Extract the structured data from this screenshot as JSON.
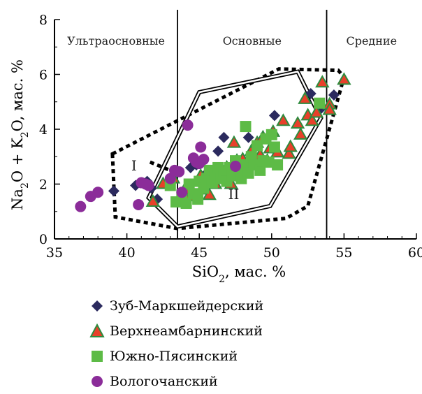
{
  "chart_data": {
    "type": "scatter",
    "title": "",
    "xlabel": "SiO2, мас. %",
    "ylabel": "Na2O + K2O, мас. %",
    "xlim": [
      35,
      60
    ],
    "ylim": [
      0,
      8
    ],
    "x_ticks": [
      "35",
      "40",
      "45",
      "50",
      "55",
      "60"
    ],
    "y_ticks": [
      "0",
      "2",
      "4",
      "6",
      "8"
    ],
    "boundaries_x": [
      43.5,
      53.8
    ],
    "field_labels": [
      "Ультраосновные",
      "Основные",
      "Средние"
    ],
    "region_labels": [
      "I",
      "II"
    ],
    "series": [
      {
        "name": "Зуб-Маркшейдерский",
        "marker": "diamond",
        "color": "#2b2a5e",
        "points": [
          [
            39.1,
            1.75
          ],
          [
            40.6,
            1.95
          ],
          [
            41.4,
            2.1
          ],
          [
            41.7,
            1.85
          ],
          [
            42.1,
            1.45
          ],
          [
            43.4,
            2.4
          ],
          [
            44.4,
            2.6
          ],
          [
            44.8,
            2.7
          ],
          [
            45.6,
            2.45
          ],
          [
            46.3,
            3.2
          ],
          [
            46.7,
            3.7
          ],
          [
            47.6,
            2.6
          ],
          [
            48.0,
            2.5
          ],
          [
            48.4,
            3.7
          ],
          [
            49.4,
            2.9
          ],
          [
            50.2,
            4.5
          ],
          [
            52.7,
            5.3
          ],
          [
            54.3,
            5.25
          ],
          [
            53.4,
            4.75
          ]
        ]
      },
      {
        "name": "Верхнеамбарнинский",
        "marker": "triangle",
        "color": "#e8402a",
        "edge": "#2e8b3e",
        "points": [
          [
            41.8,
            1.35
          ],
          [
            42.5,
            2.0
          ],
          [
            43.2,
            2.2
          ],
          [
            44.0,
            1.8
          ],
          [
            44.4,
            1.55
          ],
          [
            45.1,
            2.3
          ],
          [
            45.4,
            1.8
          ],
          [
            45.7,
            1.6
          ],
          [
            46.1,
            2.0
          ],
          [
            46.4,
            2.3
          ],
          [
            46.9,
            2.6
          ],
          [
            47.2,
            2.0
          ],
          [
            47.4,
            3.5
          ],
          [
            47.6,
            2.85
          ],
          [
            47.8,
            2.4
          ],
          [
            48.0,
            2.9
          ],
          [
            48.2,
            2.6
          ],
          [
            48.6,
            3.2
          ],
          [
            49.0,
            3.5
          ],
          [
            49.2,
            3.05
          ],
          [
            49.4,
            3.7
          ],
          [
            49.7,
            2.85
          ],
          [
            49.9,
            3.3
          ],
          [
            50.1,
            3.9
          ],
          [
            50.4,
            3.15
          ],
          [
            50.8,
            4.3
          ],
          [
            51.2,
            3.1
          ],
          [
            51.3,
            3.35
          ],
          [
            51.8,
            4.2
          ],
          [
            52.0,
            3.8
          ],
          [
            52.3,
            5.1
          ],
          [
            52.5,
            4.5
          ],
          [
            52.8,
            4.3
          ],
          [
            53.1,
            4.6
          ],
          [
            53.5,
            5.7
          ],
          [
            54.0,
            4.9
          ],
          [
            54.0,
            4.7
          ],
          [
            55.0,
            5.8
          ]
        ]
      },
      {
        "name": "Южно-Пясинский",
        "marker": "square",
        "color": "#5dbb46",
        "points": [
          [
            43.0,
            1.95
          ],
          [
            43.4,
            1.35
          ],
          [
            43.8,
            1.6
          ],
          [
            44.1,
            1.3
          ],
          [
            44.3,
            2.0
          ],
          [
            44.6,
            1.65
          ],
          [
            44.9,
            1.45
          ],
          [
            45.0,
            2.1
          ],
          [
            45.3,
            1.85
          ],
          [
            45.5,
            2.2
          ],
          [
            45.7,
            2.5
          ],
          [
            45.9,
            2.05
          ],
          [
            46.1,
            2.35
          ],
          [
            46.3,
            2.6
          ],
          [
            46.5,
            2.2
          ],
          [
            46.7,
            2.45
          ],
          [
            46.9,
            2.1
          ],
          [
            47.1,
            2.6
          ],
          [
            47.3,
            2.3
          ],
          [
            47.5,
            2.85
          ],
          [
            47.7,
            2.5
          ],
          [
            47.9,
            2.2
          ],
          [
            48.1,
            2.7
          ],
          [
            48.2,
            4.1
          ],
          [
            48.4,
            2.4
          ],
          [
            48.6,
            3.0
          ],
          [
            48.8,
            2.7
          ],
          [
            49.0,
            3.4
          ],
          [
            49.2,
            2.5
          ],
          [
            49.4,
            2.85
          ],
          [
            49.6,
            3.65
          ],
          [
            49.8,
            2.8
          ],
          [
            50.0,
            3.8
          ],
          [
            50.2,
            3.35
          ],
          [
            50.4,
            2.7
          ],
          [
            53.3,
            4.95
          ]
        ]
      },
      {
        "name": "Вологочанский",
        "marker": "circle",
        "color": "#8b2c99",
        "points": [
          [
            36.8,
            1.18
          ],
          [
            37.5,
            1.55
          ],
          [
            38.0,
            1.7
          ],
          [
            40.8,
            1.25
          ],
          [
            41.0,
            2.05
          ],
          [
            41.3,
            2.0
          ],
          [
            41.5,
            1.95
          ],
          [
            43.0,
            2.2
          ],
          [
            43.3,
            2.5
          ],
          [
            43.6,
            2.45
          ],
          [
            43.8,
            1.7
          ],
          [
            44.6,
            2.95
          ],
          [
            44.8,
            2.8
          ],
          [
            45.0,
            2.75
          ],
          [
            45.1,
            3.35
          ],
          [
            45.3,
            2.9
          ],
          [
            47.5,
            2.65
          ],
          [
            44.2,
            4.15
          ]
        ]
      }
    ],
    "region_I_dotted": [
      [
        39,
        3.1
      ],
      [
        50.5,
        6.2
      ],
      [
        54.6,
        6.15
      ],
      [
        55.0,
        5.9
      ],
      [
        52.5,
        1.2
      ],
      [
        51.0,
        0.75
      ],
      [
        43.5,
        0.38
      ],
      [
        39.2,
        0.8
      ]
    ],
    "region_I_inner_dotted": [
      [
        41.6,
        2.8
      ],
      [
        43.7,
        2.35
      ]
    ],
    "region_II_double": [
      [
        41.5,
        1.5
      ],
      [
        45.0,
        5.35
      ],
      [
        51.8,
        6.1
      ],
      [
        53.4,
        4.4
      ],
      [
        49.9,
        1.2
      ],
      [
        43.5,
        0.45
      ]
    ]
  },
  "legend": {
    "items": [
      {
        "label": "Зуб-Маркшейдерский",
        "marker": "diamond",
        "color": "#2b2a5e"
      },
      {
        "label": "Верхнеамбарнинский",
        "marker": "triangle",
        "color": "#e8402a"
      },
      {
        "label": "Южно-Пясинский",
        "marker": "square",
        "color": "#5dbb46"
      },
      {
        "label": "Вологочанский",
        "marker": "circle",
        "color": "#8b2c99"
      }
    ]
  }
}
